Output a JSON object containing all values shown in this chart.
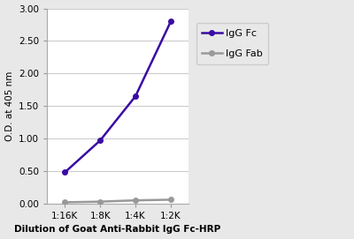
{
  "x_labels": [
    "1:16K",
    "1:8K",
    "1:4K",
    "1:2K"
  ],
  "x_values": [
    0,
    1,
    2,
    3
  ],
  "IgG_Fc": [
    0.48,
    0.97,
    1.65,
    2.8
  ],
  "IgG_Fab": [
    0.02,
    0.03,
    0.05,
    0.06
  ],
  "IgG_Fc_color": "#3a0ca3",
  "IgG_Fab_color": "#999999",
  "ylabel": "O.D. at 405 nm",
  "xlabel": "Dilution of Goat Anti-Rabbit IgG Fc-HRP",
  "ylim": [
    0.0,
    3.0
  ],
  "yticks": [
    0.0,
    0.5,
    1.0,
    1.5,
    2.0,
    2.5,
    3.0
  ],
  "legend_IgG_Fc": "IgG Fc",
  "legend_IgG_Fab": "IgG Fab",
  "background_color": "#e8e8e8",
  "plot_background": "#ffffff",
  "grid_color": "#cccccc"
}
